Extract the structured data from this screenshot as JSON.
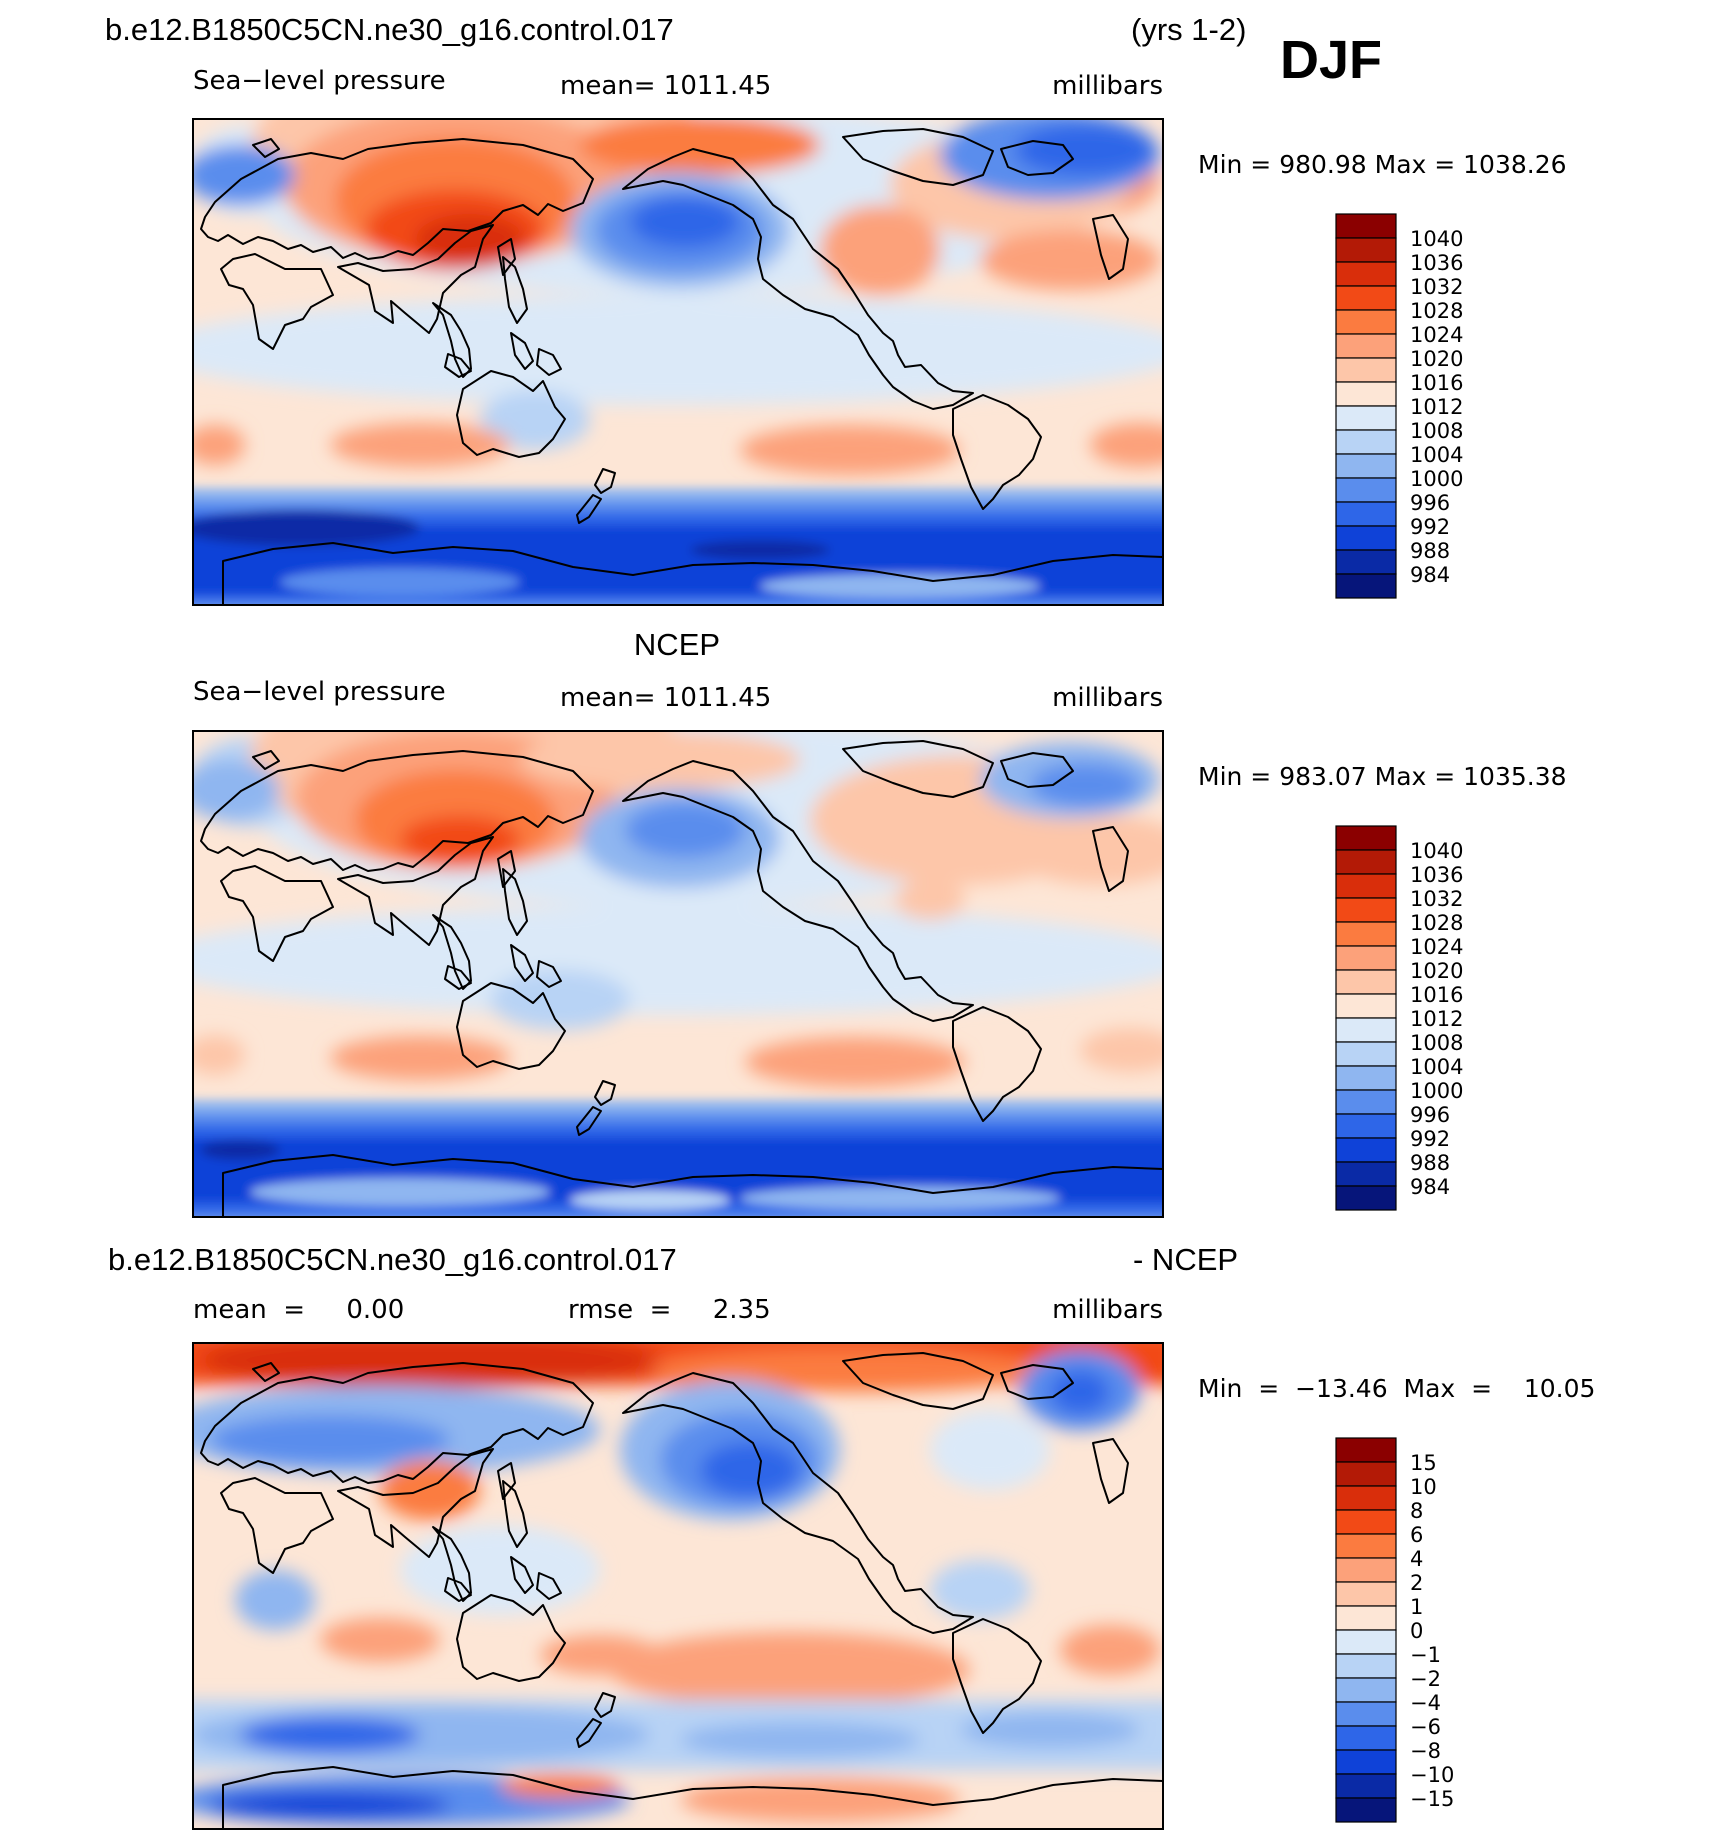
{
  "header": {
    "case_name": "b.e12.B1850C5CN.ne30_g16.control.017",
    "years": "(yrs 1-2)",
    "season": "DJF"
  },
  "panels": [
    {
      "id": "model",
      "title": "",
      "variable": "Sea−level pressure",
      "stat_text": "mean=  1011.45",
      "units": "millibars",
      "minmax": "Min  =  980.98  Max  =  1038.26",
      "colorbar": {
        "labels": [
          "1040",
          "1036",
          "1032",
          "1028",
          "1024",
          "1020",
          "1016",
          "1012",
          "1008",
          "1004",
          "1000",
          "996",
          "992",
          "988",
          "984"
        ],
        "colors": [
          "#8b0000",
          "#b31a06",
          "#d92e0b",
          "#f24a16",
          "#fb7b40",
          "#fca17a",
          "#fdc6a9",
          "#fde6d6",
          "#dbe9f8",
          "#b8d3f5",
          "#8fb6f0",
          "#5a8ded",
          "#2e66e8",
          "#0f42d8",
          "#0a2aa6",
          "#06157a"
        ]
      },
      "map": {
        "projection": "cylindrical equidistant, 0° to 360°",
        "features": [
          {
            "label": "siberian-high",
            "cls": 8,
            "lon": 95,
            "lat": 50
          },
          {
            "label": "aleutian-low",
            "cls": -7,
            "lon": 180,
            "lat": 52
          },
          {
            "label": "icelandic-low",
            "cls": -6,
            "lon": 330,
            "lat": 62
          },
          {
            "label": "southern-ocean-trough",
            "cls": -8,
            "lon": 180,
            "lat": -62
          }
        ]
      }
    },
    {
      "id": "obs",
      "title": "NCEP",
      "variable": "Sea−level pressure",
      "stat_text": "mean=  1011.45",
      "units": "millibars",
      "minmax": "Min  =  983.07  Max  =  1035.38",
      "colorbar": {
        "labels": [
          "1040",
          "1036",
          "1032",
          "1028",
          "1024",
          "1020",
          "1016",
          "1012",
          "1008",
          "1004",
          "1000",
          "996",
          "992",
          "988",
          "984"
        ],
        "colors": [
          "#8b0000",
          "#b31a06",
          "#d92e0b",
          "#f24a16",
          "#fb7b40",
          "#fca17a",
          "#fdc6a9",
          "#fde6d6",
          "#dbe9f8",
          "#b8d3f5",
          "#8fb6f0",
          "#5a8ded",
          "#2e66e8",
          "#0f42d8",
          "#0a2aa6",
          "#06157a"
        ]
      },
      "map": {
        "projection": "cylindrical equidistant, 0° to 360°",
        "features": [
          {
            "label": "siberian-high",
            "cls": 7,
            "lon": 95,
            "lat": 50
          },
          {
            "label": "aleutian-low",
            "cls": -5,
            "lon": 182,
            "lat": 52
          },
          {
            "label": "icelandic-low",
            "cls": -5,
            "lon": 330,
            "lat": 62
          },
          {
            "label": "southern-ocean-trough",
            "cls": -8,
            "lon": 180,
            "lat": -62
          }
        ]
      }
    },
    {
      "id": "diff",
      "title_left": "b.e12.B1850C5CN.ne30_g16.control.017",
      "title_right": "- NCEP",
      "stat_left": "mean  =     0.00",
      "stat_mid": "rmse  =     2.35",
      "units": "millibars",
      "minmax": "Min  =  −13.46  Max  =    10.05",
      "colorbar": {
        "labels": [
          "15",
          "10",
          "8",
          "6",
          "4",
          "2",
          "1",
          "0",
          "−1",
          "−2",
          "−4",
          "−6",
          "−8",
          "−10",
          "−15"
        ],
        "colors": [
          "#8b0000",
          "#b31a06",
          "#d92e0b",
          "#f24a16",
          "#fb7b40",
          "#fca17a",
          "#fdc6a9",
          "#fde6d6",
          "#dbe9f8",
          "#b8d3f5",
          "#8fb6f0",
          "#5a8ded",
          "#2e66e8",
          "#0f42d8",
          "#0a2aa6",
          "#06157a"
        ]
      },
      "map": {
        "projection": "cylindrical equidistant, 0° to 360°",
        "features": [
          {
            "label": "arctic-positive-anomaly",
            "cls": 4,
            "lon": 80,
            "lat": 82
          },
          {
            "label": "north-pacific-negative-anomaly",
            "cls": -4,
            "lon": 175,
            "lat": 45
          },
          {
            "label": "greenland-negative-anomaly",
            "cls": -5,
            "lon": 315,
            "lat": 70
          },
          {
            "label": "southern-ocean-negative-anomaly",
            "cls": -3,
            "lon": 60,
            "lat": -55
          }
        ]
      }
    }
  ]
}
